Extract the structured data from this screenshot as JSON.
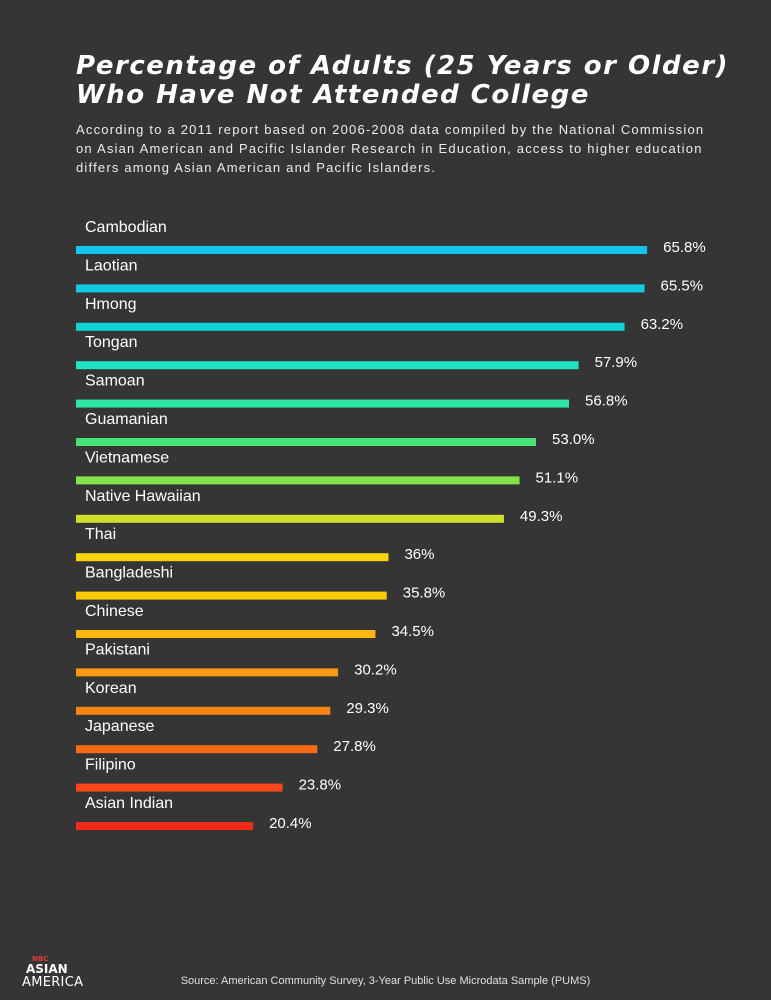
{
  "title": "Percentage of Adults (25 Years or Older) Who Have Not Attended College",
  "subtitle": "According to a 2011 report based on 2006-2008 data compiled by the National Commission on Asian American and Pacific Islander Research in Education, access to higher education differs among Asian American and Pacific Islanders.",
  "source": "Source: American Community Survey, 3-Year Public Use Microdata Sample (PUMS)",
  "logo": {
    "nbc": "NBC",
    "line1": "ASIAN",
    "line2": "AMERICA"
  },
  "chart_data": {
    "type": "bar",
    "orientation": "horizontal",
    "title": "Percentage of Adults (25 Years or Older) Who Have Not Attended College",
    "categories": [
      "Cambodian",
      "Laotian",
      "Hmong",
      "Tongan",
      "Samoan",
      "Guamanian",
      "Vietnamese",
      "Native Hawaiian",
      "Thai",
      "Bangladeshi",
      "Chinese",
      "Pakistani",
      "Korean",
      "Japanese",
      "Filipino",
      "Asian Indian"
    ],
    "values": [
      65.8,
      65.5,
      63.2,
      57.9,
      56.8,
      53.0,
      51.1,
      49.3,
      36,
      35.8,
      34.5,
      30.2,
      29.3,
      27.8,
      23.8,
      20.4
    ],
    "value_labels": [
      "65.8%",
      "65.5%",
      "63.2%",
      "57.9%",
      "56.8%",
      "53.0%",
      "51.1%",
      "49.3%",
      "36%",
      "35.8%",
      "34.5%",
      "30.2%",
      "29.3%",
      "27.8%",
      "23.8%",
      "20.4%"
    ],
    "colors": [
      "#13c4ec",
      "#12cbe3",
      "#10d4d8",
      "#1fe3c2",
      "#2fe6a4",
      "#47e274",
      "#86e24a",
      "#cfe02a",
      "#f6d40b",
      "#f7c906",
      "#f9b60c",
      "#f99a12",
      "#f98614",
      "#f96b13",
      "#f8461a",
      "#f42a18"
    ],
    "xlim": [
      0,
      100
    ],
    "grid": false,
    "legend": "none"
  }
}
